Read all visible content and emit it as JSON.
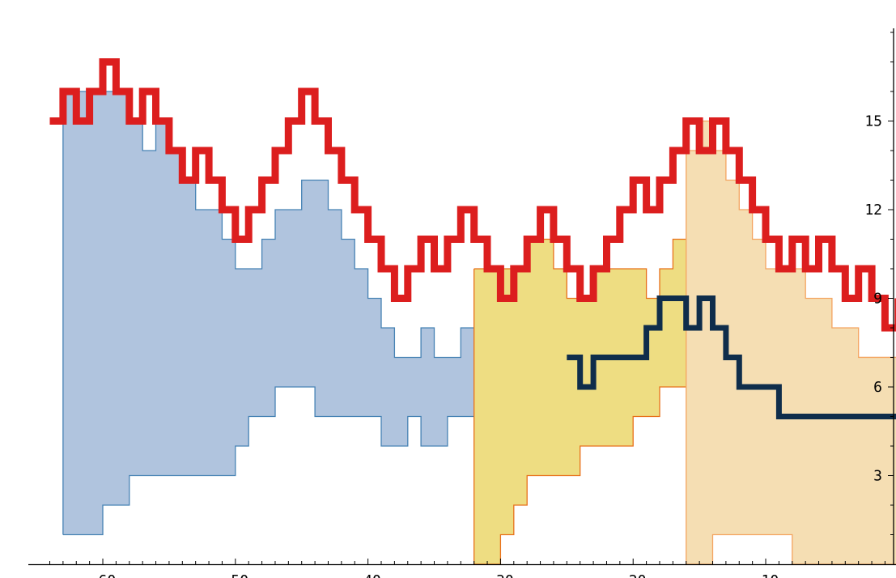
{
  "chart_data": {
    "type": "area",
    "title": "",
    "xlabel": "",
    "ylabel": "",
    "xlim": [
      -64,
      0
    ],
    "ylim": [
      0,
      18
    ],
    "y_axis_position": "right",
    "x_ticks": [
      -60,
      -50,
      -40,
      -30,
      -20,
      -10
    ],
    "x_tick_labels": [
      "-60",
      "-50",
      "-40",
      "-30",
      "-20",
      "-10"
    ],
    "y_ticks": [
      3,
      6,
      9,
      12,
      15
    ],
    "y_tick_labels": [
      "3",
      "6",
      "9",
      "12",
      "15"
    ],
    "grid": false,
    "legend": "none",
    "colors": {
      "band_1_fill": "#b0c4de",
      "band_1_edge": "#4682b4",
      "band_2_fill": "#eedd82",
      "band_2_edge": "#e8701a",
      "band_3_fill": "#f5deb3",
      "band_3_edge": "#f4a460",
      "upper_line": "#dc1e1e",
      "lower_line": "#0f2d4b"
    },
    "series": [
      {
        "kind": "band",
        "style": "band_1",
        "upper": [
          [
            -63,
            16
          ],
          [
            -62,
            16
          ],
          [
            -61,
            16
          ],
          [
            -60,
            16
          ],
          [
            -59,
            16
          ],
          [
            -58,
            15
          ],
          [
            -57,
            14
          ],
          [
            -56,
            15
          ],
          [
            -55,
            14
          ],
          [
            -54,
            13
          ],
          [
            -53,
            12
          ],
          [
            -52,
            12
          ],
          [
            -51,
            11
          ],
          [
            -50,
            10
          ],
          [
            -49,
            10
          ],
          [
            -48,
            11
          ],
          [
            -47,
            12
          ],
          [
            -46,
            12
          ],
          [
            -45,
            13
          ],
          [
            -44,
            13
          ],
          [
            -43,
            12
          ],
          [
            -42,
            11
          ],
          [
            -41,
            10
          ],
          [
            -40,
            9
          ],
          [
            -39,
            8
          ],
          [
            -38,
            7
          ],
          [
            -37,
            7
          ],
          [
            -36,
            8
          ],
          [
            -35,
            7
          ],
          [
            -34,
            7
          ],
          [
            -33,
            8
          ],
          [
            -32,
            8
          ],
          [
            -31,
            7
          ],
          [
            -30,
            6
          ],
          [
            -29,
            7
          ],
          [
            -28,
            8
          ],
          [
            -27,
            9
          ],
          [
            -26,
            8
          ],
          [
            -25,
            7
          ],
          [
            -24,
            7
          ]
        ],
        "lower": [
          [
            -63,
            1
          ],
          [
            -62,
            1
          ],
          [
            -61,
            1
          ],
          [
            -60,
            2
          ],
          [
            -59,
            2
          ],
          [
            -58,
            3
          ],
          [
            -57,
            3
          ],
          [
            -56,
            3
          ],
          [
            -55,
            3
          ],
          [
            -54,
            3
          ],
          [
            -53,
            3
          ],
          [
            -52,
            3
          ],
          [
            -51,
            3
          ],
          [
            -50,
            4
          ],
          [
            -49,
            5
          ],
          [
            -48,
            5
          ],
          [
            -47,
            6
          ],
          [
            -46,
            6
          ],
          [
            -45,
            6
          ],
          [
            -44,
            5
          ],
          [
            -43,
            5
          ],
          [
            -42,
            5
          ],
          [
            -41,
            5
          ],
          [
            -40,
            5
          ],
          [
            -39,
            4
          ],
          [
            -38,
            4
          ],
          [
            -37,
            5
          ],
          [
            -36,
            4
          ],
          [
            -35,
            4
          ],
          [
            -34,
            5
          ],
          [
            -33,
            5
          ],
          [
            -32,
            4
          ],
          [
            -31,
            4
          ],
          [
            -30,
            5
          ],
          [
            -29,
            5
          ],
          [
            -28,
            6
          ],
          [
            -27,
            7
          ],
          [
            -26,
            7
          ],
          [
            -25,
            7
          ],
          [
            -24,
            7
          ]
        ]
      },
      {
        "kind": "band",
        "style": "band_2",
        "upper": [
          [
            -32,
            10
          ],
          [
            -31,
            10
          ],
          [
            -30,
            10
          ],
          [
            -29,
            10
          ],
          [
            -28,
            11
          ],
          [
            -27,
            11
          ],
          [
            -26,
            10
          ],
          [
            -25,
            9
          ],
          [
            -24,
            9
          ],
          [
            -23,
            10
          ],
          [
            -22,
            10
          ],
          [
            -21,
            10
          ],
          [
            -20,
            10
          ],
          [
            -19,
            9
          ],
          [
            -18,
            10
          ],
          [
            -17,
            11
          ],
          [
            -16,
            11
          ],
          [
            -15,
            10
          ],
          [
            -14,
            11
          ],
          [
            -13,
            10
          ],
          [
            -12,
            9
          ],
          [
            -11,
            8
          ],
          [
            -10,
            7
          ],
          [
            -9,
            7
          ],
          [
            -8,
            7
          ],
          [
            -7,
            7
          ],
          [
            -6,
            7
          ],
          [
            -5,
            7
          ],
          [
            -4,
            7
          ],
          [
            -3,
            7
          ],
          [
            -2,
            7
          ],
          [
            -1,
            7
          ]
        ],
        "lower": [
          [
            -32,
            0
          ],
          [
            -31,
            0
          ],
          [
            -30,
            1
          ],
          [
            -29,
            2
          ],
          [
            -28,
            3
          ],
          [
            -27,
            3
          ],
          [
            -26,
            3
          ],
          [
            -25,
            3
          ],
          [
            -24,
            4
          ],
          [
            -23,
            4
          ],
          [
            -22,
            4
          ],
          [
            -21,
            4
          ],
          [
            -20,
            5
          ],
          [
            -19,
            5
          ],
          [
            -18,
            6
          ],
          [
            -17,
            6
          ],
          [
            -16,
            6
          ],
          [
            -15,
            6
          ],
          [
            -14,
            7
          ],
          [
            -13,
            6
          ],
          [
            -12,
            5
          ],
          [
            -11,
            5
          ],
          [
            -10,
            5
          ],
          [
            -9,
            4
          ],
          [
            -8,
            4
          ],
          [
            -7,
            4
          ],
          [
            -6,
            4
          ],
          [
            -5,
            4
          ],
          [
            -4,
            4
          ],
          [
            -3,
            4
          ],
          [
            -2,
            4
          ],
          [
            -1,
            4
          ]
        ]
      },
      {
        "kind": "band",
        "style": "band_3",
        "upper": [
          [
            -16,
            14
          ],
          [
            -15,
            15
          ],
          [
            -14,
            14
          ],
          [
            -13,
            13
          ],
          [
            -12,
            12
          ],
          [
            -11,
            11
          ],
          [
            -10,
            10
          ],
          [
            -9,
            10
          ],
          [
            -8,
            10
          ],
          [
            -7,
            9
          ],
          [
            -6,
            9
          ],
          [
            -5,
            8
          ],
          [
            -4,
            8
          ],
          [
            -3,
            7
          ],
          [
            -2,
            7
          ],
          [
            -1,
            7
          ]
        ],
        "lower": [
          [
            -16,
            0
          ],
          [
            -15,
            0
          ],
          [
            -14,
            1
          ],
          [
            -13,
            1
          ],
          [
            -12,
            1
          ],
          [
            -11,
            1
          ],
          [
            -10,
            1
          ],
          [
            -9,
            1
          ],
          [
            -8,
            0
          ],
          [
            -7,
            0
          ],
          [
            -6,
            0
          ],
          [
            -5,
            0
          ],
          [
            -4,
            0
          ],
          [
            -3,
            0
          ],
          [
            -2,
            0
          ],
          [
            -1,
            0
          ]
        ]
      },
      {
        "kind": "line",
        "style": "upper_line",
        "points": [
          [
            -64,
            15
          ],
          [
            -63,
            16
          ],
          [
            -62,
            15
          ],
          [
            -61,
            16
          ],
          [
            -60,
            17
          ],
          [
            -59,
            16
          ],
          [
            -58,
            15
          ],
          [
            -57,
            16
          ],
          [
            -56,
            15
          ],
          [
            -55,
            14
          ],
          [
            -54,
            13
          ],
          [
            -53,
            14
          ],
          [
            -52,
            13
          ],
          [
            -51,
            12
          ],
          [
            -50,
            11
          ],
          [
            -49,
            12
          ],
          [
            -48,
            13
          ],
          [
            -47,
            14
          ],
          [
            -46,
            15
          ],
          [
            -45,
            16
          ],
          [
            -44,
            15
          ],
          [
            -43,
            14
          ],
          [
            -42,
            13
          ],
          [
            -41,
            12
          ],
          [
            -40,
            11
          ],
          [
            -39,
            10
          ],
          [
            -38,
            9
          ],
          [
            -37,
            10
          ],
          [
            -36,
            11
          ],
          [
            -35,
            10
          ],
          [
            -34,
            11
          ],
          [
            -33,
            12
          ],
          [
            -32,
            11
          ],
          [
            -31,
            10
          ],
          [
            -30,
            9
          ],
          [
            -29,
            10
          ],
          [
            -28,
            11
          ],
          [
            -27,
            12
          ],
          [
            -26,
            11
          ],
          [
            -25,
            10
          ],
          [
            -24,
            9
          ],
          [
            -23,
            10
          ],
          [
            -22,
            11
          ],
          [
            -21,
            12
          ],
          [
            -20,
            13
          ],
          [
            -19,
            12
          ],
          [
            -18,
            13
          ],
          [
            -17,
            14
          ],
          [
            -16,
            15
          ],
          [
            -15,
            14
          ],
          [
            -14,
            15
          ],
          [
            -13,
            14
          ],
          [
            -12,
            13
          ],
          [
            -11,
            12
          ],
          [
            -10,
            11
          ],
          [
            -9,
            10
          ],
          [
            -8,
            11
          ],
          [
            -7,
            10
          ],
          [
            -6,
            11
          ],
          [
            -5,
            10
          ],
          [
            -4,
            9
          ],
          [
            -3,
            10
          ],
          [
            -2,
            9
          ],
          [
            -1,
            8
          ],
          [
            0,
            9
          ]
        ]
      },
      {
        "kind": "line",
        "style": "lower_line",
        "points": [
          [
            -25,
            7
          ],
          [
            -24,
            6
          ],
          [
            -23,
            7
          ],
          [
            -22,
            7
          ],
          [
            -21,
            7
          ],
          [
            -20,
            7
          ],
          [
            -19,
            8
          ],
          [
            -18,
            9
          ],
          [
            -17,
            9
          ],
          [
            -16,
            8
          ],
          [
            -15,
            9
          ],
          [
            -14,
            8
          ],
          [
            -13,
            7
          ],
          [
            -12,
            6
          ],
          [
            -11,
            6
          ],
          [
            -10,
            6
          ],
          [
            -9,
            5
          ],
          [
            -8,
            5
          ],
          [
            -7,
            5
          ],
          [
            -6,
            5
          ],
          [
            -5,
            5
          ],
          [
            -4,
            5
          ],
          [
            -3,
            5
          ],
          [
            -2,
            5
          ],
          [
            -1,
            5
          ],
          [
            0,
            5
          ]
        ]
      }
    ]
  }
}
